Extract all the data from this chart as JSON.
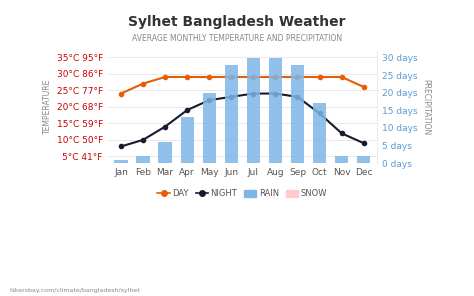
{
  "title": "Sylhet Bangladesh Weather",
  "subtitle": "AVERAGE MONTHLY TEMPERATURE AND PRECIPITATION",
  "months": [
    "Jan",
    "Feb",
    "Mar",
    "Apr",
    "May",
    "Jun",
    "Jul",
    "Aug",
    "Sep",
    "Oct",
    "Nov",
    "Dec"
  ],
  "day_temp": [
    24,
    27,
    29,
    29,
    29,
    29,
    29,
    29,
    29,
    29,
    29,
    26
  ],
  "night_temp": [
    8,
    10,
    14,
    19,
    22,
    23,
    24,
    24,
    23,
    18,
    12,
    9
  ],
  "rain_days": [
    1,
    2,
    6,
    13,
    20,
    28,
    30,
    30,
    28,
    17,
    2,
    2
  ],
  "bar_color": "#7EB6E8",
  "night_line_color": "#1a1a2e",
  "day_line_color": "#e85d04",
  "background_color": "#ffffff",
  "left_axis_labels": [
    "5°C 41°F",
    "10°C 50°F",
    "15°C 59°F",
    "20°C 68°F",
    "25°C 77°F",
    "30°C 86°F",
    "35°C 95°F"
  ],
  "left_axis_values": [
    5,
    10,
    15,
    20,
    25,
    30,
    35
  ],
  "right_axis_labels": [
    "0 days",
    "5 days",
    "10 days",
    "15 days",
    "20 days",
    "25 days",
    "30 days"
  ],
  "right_axis_values": [
    0,
    5,
    10,
    15,
    20,
    25,
    30
  ],
  "temp_ylim": [
    3,
    37
  ],
  "rain_ylim": [
    0,
    32
  ],
  "grid_color": "#e0e0e0",
  "left_label_color": "#cc0000",
  "right_label_color": "#5b9bd5",
  "footer": "hikersbay.com/climate/bangladesh/sylhet",
  "legend_day": "DAY",
  "legend_night": "NIGHT",
  "legend_rain": "RAIN",
  "legend_snow": "SNOW"
}
